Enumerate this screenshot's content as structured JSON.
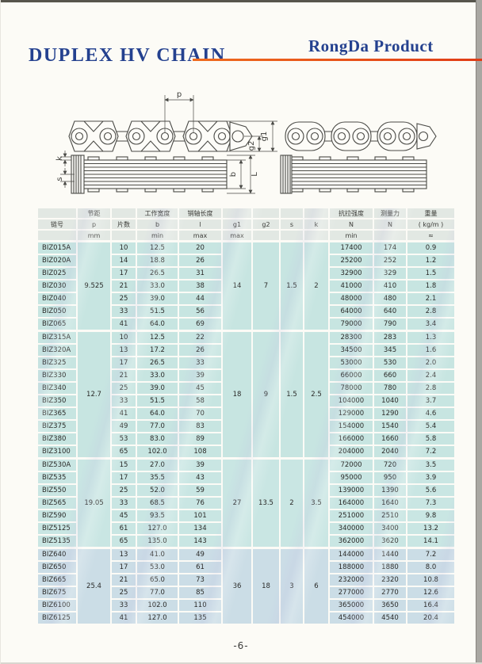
{
  "page": {
    "title": "DUPLEX HV CHAIN",
    "brand": "RongDa Product",
    "page_number": "-6-"
  },
  "diagram": {
    "dim_labels": {
      "p": "p",
      "g1": "g1",
      "g2": "g2",
      "k": "k",
      "s": "s",
      "b": "b",
      "L": "L"
    }
  },
  "table": {
    "header_rows": [
      [
        "",
        "节距",
        "",
        "工作宽度",
        "销轴长度",
        "",
        "",
        "",
        "",
        "抗拉强度",
        "测量力",
        "重量"
      ],
      [
        "链号",
        "p",
        "片数",
        "b",
        "l",
        "g1",
        "g2",
        "s",
        "k",
        "N",
        "N",
        "( kg/m )"
      ],
      [
        "",
        "mm",
        "",
        "min",
        "max",
        "max",
        "",
        "",
        "",
        "min",
        "",
        "≈"
      ]
    ],
    "groups": [
      {
        "pitch": "9.525",
        "g1": "14",
        "g2": "7",
        "s": "1.5",
        "k": "2",
        "rows": [
          {
            "no": "BIZ015A",
            "plates": "10",
            "b": "12.5",
            "l": "20",
            "strength": "17400",
            "force": "174",
            "weight": "0.9"
          },
          {
            "no": "BIZ020A",
            "plates": "14",
            "b": "18.8",
            "l": "26",
            "strength": "25200",
            "force": "252",
            "weight": "1.2"
          },
          {
            "no": "BIZ025",
            "plates": "17",
            "b": "26.5",
            "l": "31",
            "strength": "32900",
            "force": "329",
            "weight": "1.5"
          },
          {
            "no": "BIZ030",
            "plates": "21",
            "b": "33.0",
            "l": "38",
            "strength": "41000",
            "force": "410",
            "weight": "1.8"
          },
          {
            "no": "BIZ040",
            "plates": "25",
            "b": "39.0",
            "l": "44",
            "strength": "48000",
            "force": "480",
            "weight": "2.1"
          },
          {
            "no": "BIZ050",
            "plates": "33",
            "b": "51.5",
            "l": "56",
            "strength": "64000",
            "force": "640",
            "weight": "2.8"
          },
          {
            "no": "BIZ065",
            "plates": "41",
            "b": "64.0",
            "l": "69",
            "strength": "79000",
            "force": "790",
            "weight": "3.4"
          }
        ]
      },
      {
        "pitch": "12.7",
        "g1": "18",
        "g2": "9",
        "s": "1.5",
        "k": "2.5",
        "rows": [
          {
            "no": "BIZ315A",
            "plates": "10",
            "b": "12.5",
            "l": "22",
            "strength": "28300",
            "force": "283",
            "weight": "1.3"
          },
          {
            "no": "BIZ320A",
            "plates": "13",
            "b": "17.2",
            "l": "26",
            "strength": "34500",
            "force": "345",
            "weight": "1.6"
          },
          {
            "no": "BIZ325",
            "plates": "17",
            "b": "26.5",
            "l": "33",
            "strength": "53000",
            "force": "530",
            "weight": "2.0"
          },
          {
            "no": "BIZ330",
            "plates": "21",
            "b": "33.0",
            "l": "39",
            "strength": "66000",
            "force": "660",
            "weight": "2.4"
          },
          {
            "no": "BIZ340",
            "plates": "25",
            "b": "39.0",
            "l": "45",
            "strength": "78000",
            "force": "780",
            "weight": "2.8"
          },
          {
            "no": "BIZ350",
            "plates": "33",
            "b": "51.5",
            "l": "58",
            "strength": "104000",
            "force": "1040",
            "weight": "3.7"
          },
          {
            "no": "BIZ365",
            "plates": "41",
            "b": "64.0",
            "l": "70",
            "strength": "129000",
            "force": "1290",
            "weight": "4.6"
          },
          {
            "no": "BIZ375",
            "plates": "49",
            "b": "77.0",
            "l": "83",
            "strength": "154000",
            "force": "1540",
            "weight": "5.4"
          },
          {
            "no": "BIZ380",
            "plates": "53",
            "b": "83.0",
            "l": "89",
            "strength": "166000",
            "force": "1660",
            "weight": "5.8"
          },
          {
            "no": "BIZ3100",
            "plates": "65",
            "b": "102.0",
            "l": "108",
            "strength": "204000",
            "force": "2040",
            "weight": "7.2"
          }
        ]
      },
      {
        "pitch": "19.05",
        "g1": "27",
        "g2": "13.5",
        "s": "2",
        "k": "3.5",
        "rows": [
          {
            "no": "BIZ530A",
            "plates": "15",
            "b": "27.0",
            "l": "39",
            "strength": "72000",
            "force": "720",
            "weight": "3.5"
          },
          {
            "no": "BIZ535",
            "plates": "17",
            "b": "35.5",
            "l": "43",
            "strength": "95000",
            "force": "950",
            "weight": "3.9"
          },
          {
            "no": "BIZ550",
            "plates": "25",
            "b": "52.0",
            "l": "59",
            "strength": "139000",
            "force": "1390",
            "weight": "5.6"
          },
          {
            "no": "BIZ565",
            "plates": "33",
            "b": "68.5",
            "l": "76",
            "strength": "164000",
            "force": "1640",
            "weight": "7.3"
          },
          {
            "no": "BIZ590",
            "plates": "45",
            "b": "93.5",
            "l": "101",
            "strength": "251000",
            "force": "2510",
            "weight": "9.8"
          },
          {
            "no": "BIZ5125",
            "plates": "61",
            "b": "127.0",
            "l": "134",
            "strength": "340000",
            "force": "3400",
            "weight": "13.2"
          },
          {
            "no": "BIZ5135",
            "plates": "65",
            "b": "135.0",
            "l": "143",
            "strength": "362000",
            "force": "3620",
            "weight": "14.1"
          }
        ]
      },
      {
        "pitch": "25.4",
        "g1": "36",
        "g2": "18",
        "s": "3",
        "k": "6",
        "rows": [
          {
            "no": "BIZ640",
            "plates": "13",
            "b": "41.0",
            "l": "49",
            "strength": "144000",
            "force": "1440",
            "weight": "7.2"
          },
          {
            "no": "BIZ650",
            "plates": "17",
            "b": "53.0",
            "l": "61",
            "strength": "188000",
            "force": "1880",
            "weight": "8.0"
          },
          {
            "no": "BIZ665",
            "plates": "21",
            "b": "65.0",
            "l": "73",
            "strength": "232000",
            "force": "2320",
            "weight": "10.8"
          },
          {
            "no": "BIZ675",
            "plates": "25",
            "b": "77.0",
            "l": "85",
            "strength": "277000",
            "force": "2770",
            "weight": "12.6"
          },
          {
            "no": "BIZ6100",
            "plates": "33",
            "b": "102.0",
            "l": "110",
            "strength": "365000",
            "force": "3650",
            "weight": "16.4"
          },
          {
            "no": "BIZ6125",
            "plates": "41",
            "b": "127.0",
            "l": "135",
            "strength": "454000",
            "force": "4540",
            "weight": "20.4"
          }
        ]
      }
    ]
  },
  "colors": {
    "accent_blue": "#24418f",
    "rule_red": "#e0451c",
    "header_bg": "#e2e8e3",
    "group_tints": [
      "#c7e5e1",
      "#c7e5e1",
      "#c9e6e3",
      "#cbdde6"
    ]
  }
}
